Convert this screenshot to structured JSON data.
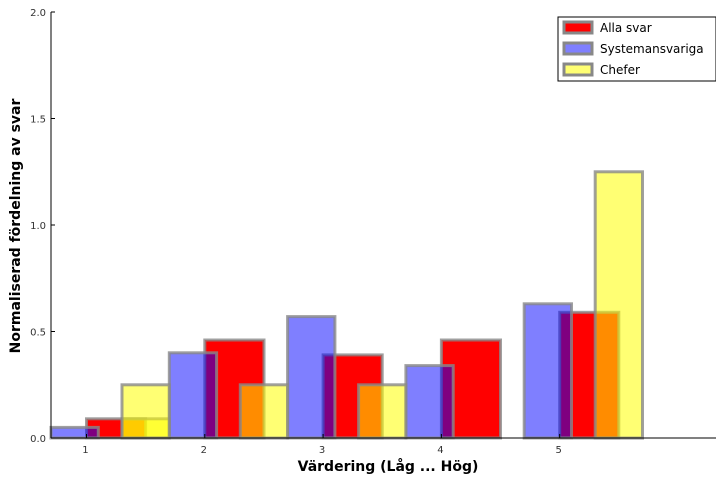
{
  "chart_data": {
    "type": "bar",
    "title": "",
    "xlabel": "Värdering (Låg ... Hög)",
    "ylabel": "Normaliserad fördelning av svar",
    "x_ticks": [
      "1",
      "2",
      "3",
      "4",
      "5"
    ],
    "y_ticks": [
      "0.0",
      "0.5",
      "1.0",
      "1.5",
      "2.0"
    ],
    "ylim": [
      0,
      2.0
    ],
    "xlim": [
      0.7,
      6.5
    ],
    "categories": [
      1,
      2,
      3,
      4,
      5
    ],
    "series": [
      {
        "name": "Alla svar",
        "color": "#ff0000",
        "opacity": 1.0,
        "x_left": [
          1.0,
          2.0,
          3.0,
          4.0,
          5.0
        ],
        "bar_width": 0.5,
        "values": [
          0.09,
          0.46,
          0.39,
          0.46,
          0.59
        ]
      },
      {
        "name": "Systemansvariga",
        "color": "#0000ff",
        "opacity": 0.5,
        "x_left": [
          0.7,
          1.7,
          2.7,
          3.7,
          4.7
        ],
        "bar_width": 0.4,
        "values": [
          0.05,
          0.4,
          0.57,
          0.34,
          0.63
        ]
      },
      {
        "name": "Chefer",
        "color": "#ffff00",
        "opacity": 0.55,
        "x_left": [
          1.3,
          2.3,
          3.3,
          4.3,
          5.3
        ],
        "bar_width": 0.4,
        "values": [
          0.09,
          0.25,
          0.25,
          0.0,
          1.25
        ],
        "extra_bars": [
          {
            "x_left": 1.3,
            "value": 0.25
          }
        ]
      }
    ],
    "legend_position": "top-right",
    "grid": false
  }
}
